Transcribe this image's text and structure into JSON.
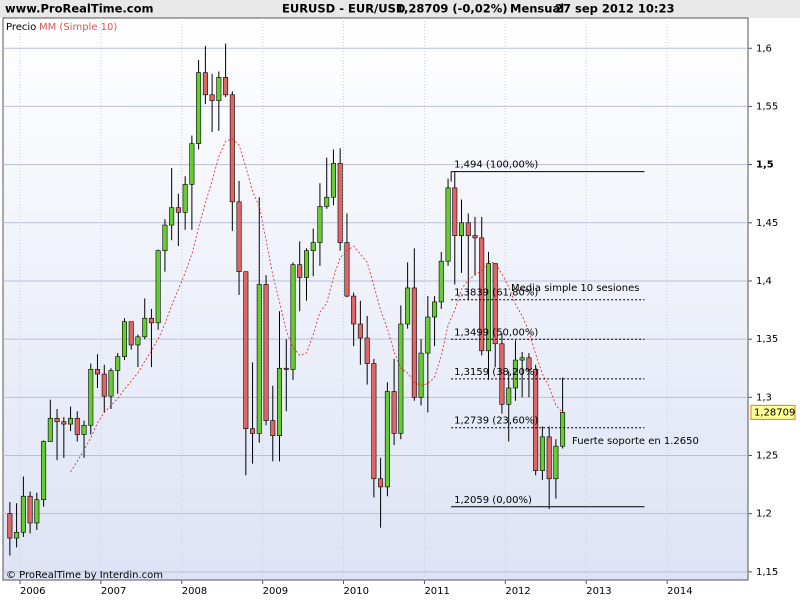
{
  "header": {
    "site": "www.ProRealTime.com",
    "symbol": "EURUSD - EUR/USD",
    "quote": "1,28709 (-0,02%)",
    "period": "Mensual",
    "timestamp": "27 sep 2012 10:23"
  },
  "footer": "© ProRealTime by Interdin.com",
  "chart_data": {
    "type": "candlestick",
    "legend": {
      "price": "Precio",
      "ma": "MM (Simple 10)"
    },
    "x": [
      2005.875,
      2005.958,
      2006.042,
      2006.125,
      2006.208,
      2006.292,
      2006.375,
      2006.458,
      2006.542,
      2006.625,
      2006.708,
      2006.792,
      2006.875,
      2006.958,
      2007.042,
      2007.125,
      2007.208,
      2007.292,
      2007.375,
      2007.458,
      2007.542,
      2007.625,
      2007.708,
      2007.792,
      2007.875,
      2007.958,
      2008.042,
      2008.125,
      2008.208,
      2008.292,
      2008.375,
      2008.458,
      2008.542,
      2008.625,
      2008.708,
      2008.792,
      2008.875,
      2008.958,
      2009.042,
      2009.125,
      2009.208,
      2009.292,
      2009.375,
      2009.458,
      2009.542,
      2009.625,
      2009.708,
      2009.792,
      2009.875,
      2009.958,
      2010.042,
      2010.125,
      2010.208,
      2010.292,
      2010.375,
      2010.458,
      2010.542,
      2010.625,
      2010.708,
      2010.792,
      2010.875,
      2010.958,
      2011.042,
      2011.125,
      2011.208,
      2011.292,
      2011.375,
      2011.458,
      2011.542,
      2011.625,
      2011.708,
      2011.792,
      2011.875,
      2011.958,
      2012.042,
      2012.125,
      2012.208,
      2012.292,
      2012.375,
      2012.458,
      2012.542,
      2012.625,
      2012.708
    ],
    "open": [
      1.2,
      1.179,
      1.184,
      1.215,
      1.192,
      1.212,
      1.262,
      1.282,
      1.279,
      1.277,
      1.282,
      1.268,
      1.276,
      1.324,
      1.32,
      1.301,
      1.323,
      1.335,
      1.365,
      1.345,
      1.352,
      1.368,
      1.364,
      1.426,
      1.448,
      1.463,
      1.459,
      1.483,
      1.518,
      1.579,
      1.56,
      1.555,
      1.575,
      1.56,
      1.468,
      1.408,
      1.273,
      1.269,
      1.397,
      1.28,
      1.267,
      1.325,
      1.324,
      1.414,
      1.403,
      1.426,
      1.433,
      1.464,
      1.472,
      1.501,
      1.433,
      1.387,
      1.363,
      1.351,
      1.329,
      1.23,
      1.223,
      1.305,
      1.269,
      1.363,
      1.394,
      1.3,
      1.338,
      1.369,
      1.382,
      1.417,
      1.48,
      1.439,
      1.45,
      1.439,
      1.437,
      1.34,
      1.415,
      1.346,
      1.294,
      1.308,
      1.332,
      1.334,
      1.324,
      1.237,
      1.266,
      1.23,
      1.258
    ],
    "high": [
      1.21,
      1.209,
      1.232,
      1.219,
      1.218,
      1.263,
      1.298,
      1.29,
      1.283,
      1.292,
      1.288,
      1.28,
      1.329,
      1.337,
      1.328,
      1.325,
      1.338,
      1.368,
      1.365,
      1.354,
      1.385,
      1.376,
      1.427,
      1.453,
      1.497,
      1.475,
      1.49,
      1.525,
      1.59,
      1.602,
      1.578,
      1.58,
      1.604,
      1.563,
      1.486,
      1.408,
      1.33,
      1.472,
      1.405,
      1.31,
      1.374,
      1.35,
      1.416,
      1.434,
      1.428,
      1.445,
      1.484,
      1.506,
      1.513,
      1.514,
      1.458,
      1.39,
      1.383,
      1.37,
      1.333,
      1.248,
      1.313,
      1.333,
      1.379,
      1.416,
      1.428,
      1.35,
      1.387,
      1.387,
      1.425,
      1.488,
      1.494,
      1.47,
      1.458,
      1.455,
      1.455,
      1.425,
      1.415,
      1.355,
      1.323,
      1.349,
      1.339,
      1.338,
      1.328,
      1.275,
      1.275,
      1.264,
      1.317
    ],
    "low": [
      1.164,
      1.171,
      1.18,
      1.183,
      1.186,
      1.206,
      1.262,
      1.246,
      1.248,
      1.271,
      1.262,
      1.248,
      1.268,
      1.308,
      1.287,
      1.29,
      1.303,
      1.332,
      1.341,
      1.326,
      1.35,
      1.326,
      1.358,
      1.408,
      1.435,
      1.43,
      1.444,
      1.444,
      1.513,
      1.552,
      1.528,
      1.529,
      1.558,
      1.443,
      1.388,
      1.233,
      1.243,
      1.261,
      1.276,
      1.245,
      1.245,
      1.288,
      1.315,
      1.374,
      1.383,
      1.404,
      1.413,
      1.462,
      1.465,
      1.426,
      1.386,
      1.344,
      1.328,
      1.311,
      1.214,
      1.188,
      1.215,
      1.259,
      1.264,
      1.359,
      1.297,
      1.293,
      1.287,
      1.344,
      1.376,
      1.413,
      1.397,
      1.407,
      1.384,
      1.405,
      1.336,
      1.315,
      1.326,
      1.286,
      1.262,
      1.297,
      1.3,
      1.3,
      1.233,
      1.229,
      1.204,
      1.213,
      1.256
    ],
    "close": [
      1.179,
      1.184,
      1.215,
      1.192,
      1.212,
      1.262,
      1.282,
      1.279,
      1.277,
      1.282,
      1.268,
      1.276,
      1.324,
      1.32,
      1.301,
      1.323,
      1.335,
      1.365,
      1.345,
      1.352,
      1.368,
      1.364,
      1.426,
      1.448,
      1.463,
      1.459,
      1.483,
      1.518,
      1.579,
      1.56,
      1.555,
      1.575,
      1.56,
      1.468,
      1.408,
      1.273,
      1.269,
      1.397,
      1.28,
      1.267,
      1.325,
      1.324,
      1.414,
      1.403,
      1.426,
      1.433,
      1.464,
      1.472,
      1.501,
      1.433,
      1.387,
      1.363,
      1.351,
      1.329,
      1.23,
      1.223,
      1.305,
      1.269,
      1.363,
      1.394,
      1.3,
      1.338,
      1.369,
      1.382,
      1.417,
      1.48,
      1.439,
      1.45,
      1.439,
      1.437,
      1.34,
      1.415,
      1.346,
      1.294,
      1.308,
      1.332,
      1.334,
      1.324,
      1.237,
      1.266,
      1.23,
      1.258,
      1.28709
    ],
    "up_color": "#66cc33",
    "down_color": "#e06666",
    "ma": {
      "color": "#dd2222",
      "values": [
        null,
        null,
        null,
        null,
        null,
        null,
        null,
        null,
        null,
        1.236,
        1.245,
        1.255,
        1.265,
        1.278,
        1.287,
        1.293,
        1.299,
        1.307,
        1.314,
        1.321,
        1.331,
        1.34,
        1.35,
        1.363,
        1.379,
        1.393,
        1.407,
        1.423,
        1.446,
        1.467,
        1.486,
        1.507,
        1.52,
        1.522,
        1.517,
        1.498,
        1.477,
        1.464,
        1.435,
        1.405,
        1.382,
        1.357,
        1.343,
        1.336,
        1.338,
        1.354,
        1.373,
        1.381,
        1.403,
        1.42,
        1.426,
        1.43,
        1.423,
        1.416,
        1.396,
        1.375,
        1.359,
        1.339,
        1.325,
        1.321,
        1.313,
        1.31,
        1.312,
        1.317,
        1.336,
        1.362,
        1.375,
        1.393,
        1.401,
        1.405,
        1.409,
        1.417,
        1.415,
        1.406,
        1.395,
        1.38,
        1.37,
        1.357,
        1.337,
        1.32,
        1.309,
        1.293,
        1.287
      ]
    },
    "fib": {
      "x_range": [
        2011.33,
        2013.72
      ],
      "levels": [
        {
          "value": 1.494,
          "label": "1,494 (100,00%)",
          "style": "solid"
        },
        {
          "value": 1.3839,
          "label": "1,3839 (61,80%)",
          "style": "dashed"
        },
        {
          "value": 1.3499,
          "label": "1,3499 (50,00%)",
          "style": "dashed"
        },
        {
          "value": 1.3159,
          "label": "1,3159 (38,20%)",
          "style": "dashed"
        },
        {
          "value": 1.2739,
          "label": "1,2739 (23,60%)",
          "style": "dashed"
        },
        {
          "value": 1.2059,
          "label": "1,2059 (0,00%)",
          "style": "solid"
        }
      ]
    },
    "annotations": [
      "Media simple 10 sesiones",
      "Fuerte soporte en 1.2650"
    ],
    "last_price": {
      "value": 1.28709,
      "label": "1,28709"
    },
    "xlim": [
      2005.79,
      2015.0
    ],
    "xticks": [
      2006,
      2007,
      2008,
      2009,
      2010,
      2011,
      2012,
      2013,
      2014
    ],
    "ylim": [
      1.143,
      1.626
    ],
    "yticks": [
      {
        "value": 1.15,
        "label": "1,15"
      },
      {
        "value": 1.2,
        "label": "1,2"
      },
      {
        "value": 1.25,
        "label": "1,25"
      },
      {
        "value": 1.3,
        "label": "1,3"
      },
      {
        "value": 1.35,
        "label": "1,35"
      },
      {
        "value": 1.4,
        "label": "1,4"
      },
      {
        "value": 1.45,
        "label": "1,45"
      },
      {
        "value": 1.5,
        "label": "1,5"
      },
      {
        "value": 1.55,
        "label": "1,55"
      },
      {
        "value": 1.6,
        "label": "1,6"
      }
    ],
    "grid": true
  }
}
